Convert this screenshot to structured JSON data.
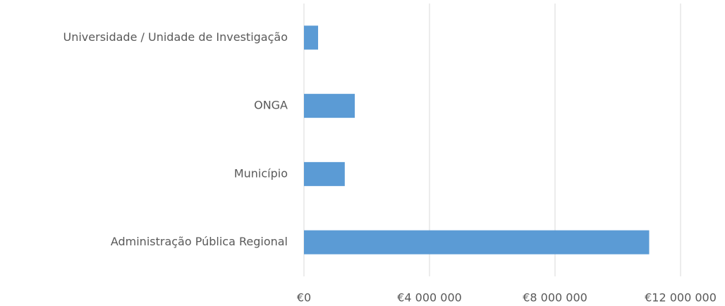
{
  "chart_data": {
    "type": "bar",
    "orientation": "horizontal",
    "categories": [
      "Universidade / Unidade de Investigação",
      "ONGA",
      "Município",
      "Administração Pública Regional"
    ],
    "values": [
      450000,
      1620000,
      1300000,
      11000000
    ],
    "color": "#5b9bd5",
    "xlim": [
      0,
      12000000
    ],
    "xticks": [
      {
        "value": 0,
        "label": "€0"
      },
      {
        "value": 4000000,
        "label": "€4 000 000"
      },
      {
        "value": 8000000,
        "label": "€8 000 000"
      },
      {
        "value": 12000000,
        "label": "€12 000 000"
      }
    ],
    "grid": true
  }
}
